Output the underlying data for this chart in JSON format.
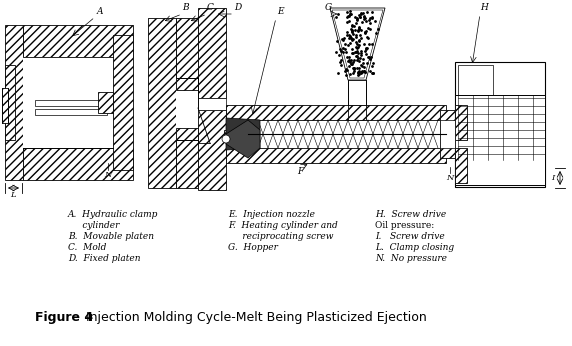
{
  "title_bold": "Figure 4",
  "title_regular": "  Injection Molding Cycle-Melt Being Plasticized Ejection",
  "legend_col1": [
    "A.  Hydraulic clamp",
    "     cylinder",
    "B.  Movable platen",
    "C.  Mold",
    "D.  Fixed platen"
  ],
  "legend_col2": [
    "E.  Injection nozzle",
    "F.  Heating cylinder and",
    "     reciprocating screw",
    "G.  Hopper"
  ],
  "legend_col3": [
    "H.  Screw drive",
    "Oil pressure:",
    "I.   Screw drive",
    "L.  Clamp closing",
    "N.  No pressure"
  ],
  "bg_color": "#ffffff",
  "figsize": [
    5.72,
    3.46
  ],
  "dpi": 100
}
